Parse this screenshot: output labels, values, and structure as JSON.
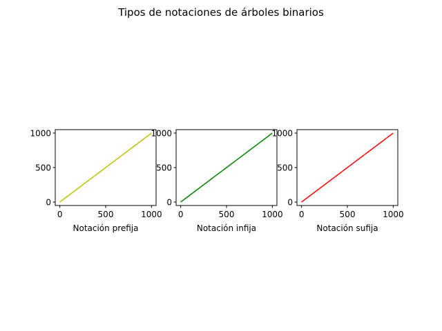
{
  "figure": {
    "title": "Tipos de notaciones de árboles binarios"
  },
  "chart_data": [
    {
      "type": "line",
      "xlabel": "Notación prefija",
      "ylabel": "",
      "xlim": [
        -50,
        1050
      ],
      "ylim": [
        -50,
        1050
      ],
      "xticks": [
        0,
        500,
        1000
      ],
      "yticks": [
        0,
        500,
        1000
      ],
      "xtick_labels": [
        "0",
        "500",
        "1000"
      ],
      "ytick_labels": [
        "0",
        "500",
        "1000"
      ],
      "grid": false,
      "series": [
        {
          "color": "#bfbf00",
          "x": [
            0,
            999
          ],
          "y": [
            0,
            999
          ]
        }
      ]
    },
    {
      "type": "line",
      "xlabel": "Notación infija",
      "ylabel": "",
      "xlim": [
        -50,
        1050
      ],
      "ylim": [
        -50,
        1050
      ],
      "xticks": [
        0,
        500,
        1000
      ],
      "yticks": [
        0,
        500,
        1000
      ],
      "xtick_labels": [
        "0",
        "500",
        "1000"
      ],
      "ytick_labels": [
        "0",
        "500",
        "1000"
      ],
      "grid": false,
      "series": [
        {
          "color": "#008000",
          "x": [
            0,
            999
          ],
          "y": [
            0,
            999
          ]
        }
      ]
    },
    {
      "type": "line",
      "xlabel": "Notación sufija",
      "ylabel": "",
      "xlim": [
        -50,
        1050
      ],
      "ylim": [
        -50,
        1050
      ],
      "xticks": [
        0,
        500,
        1000
      ],
      "yticks": [
        0,
        500,
        1000
      ],
      "xtick_labels": [
        "0",
        "500",
        "1000"
      ],
      "ytick_labels": [
        "0",
        "500",
        "1000"
      ],
      "grid": false,
      "series": [
        {
          "color": "#ff0000",
          "x": [
            0,
            999
          ],
          "y": [
            0,
            999
          ]
        }
      ]
    }
  ]
}
